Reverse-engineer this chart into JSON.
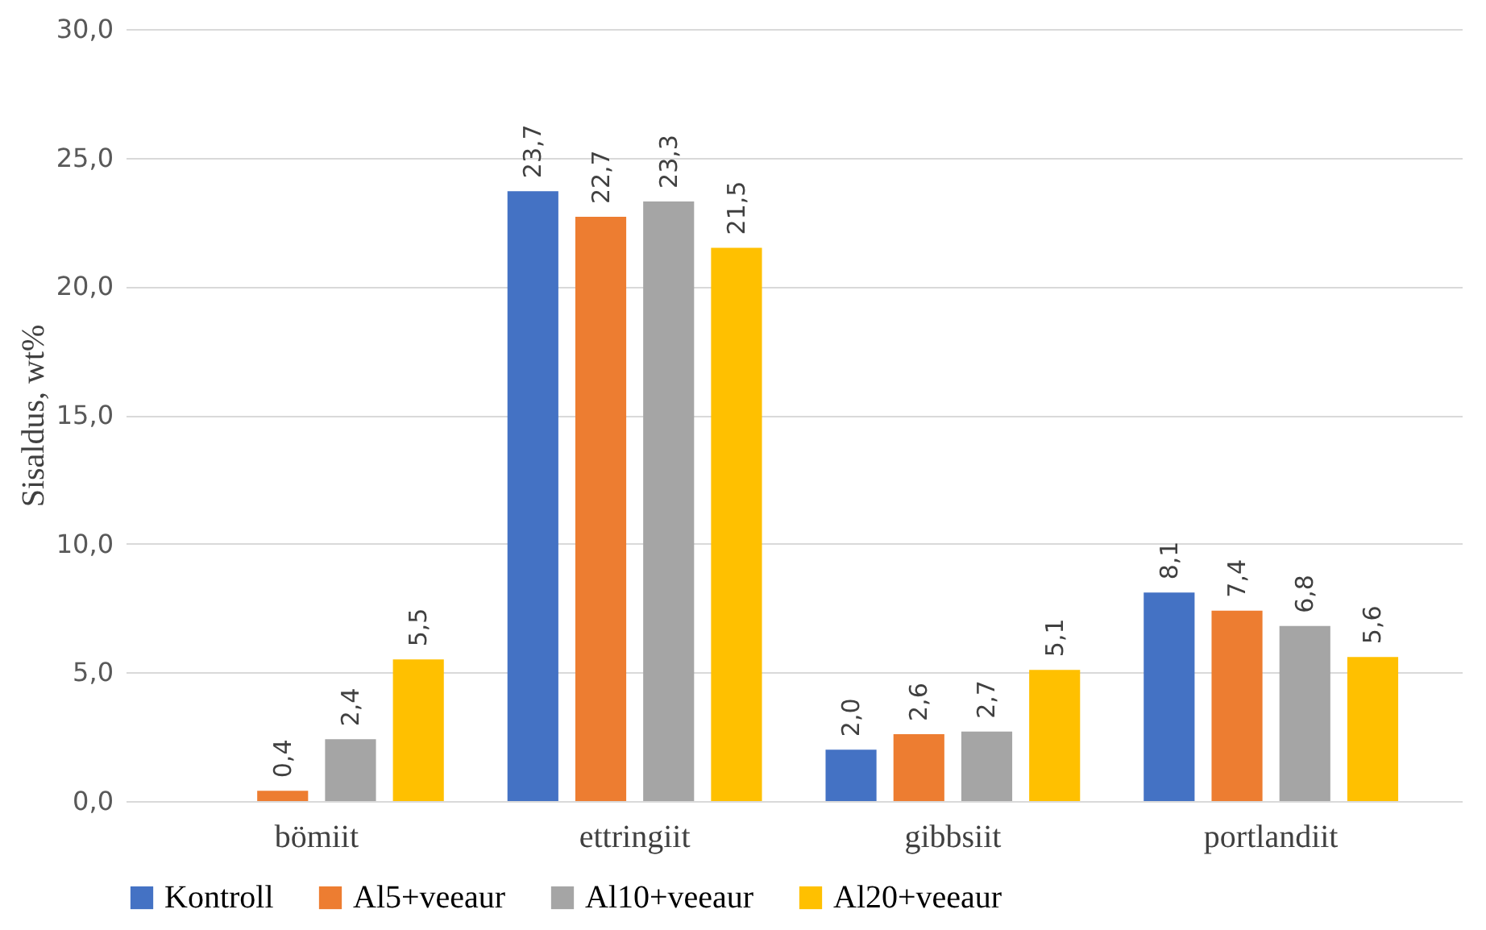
{
  "chart_data": {
    "type": "bar",
    "ylabel": "Sisaldus, wt%",
    "categories": [
      "bömiit",
      "ettringiit",
      "gibbsiit",
      "portlandiit"
    ],
    "series": [
      {
        "name": "Kontroll",
        "color": "#4472c4",
        "values": [
          null,
          23.7,
          2.0,
          8.1
        ],
        "value_labels": [
          null,
          "23,7",
          "2,0",
          "8,1"
        ]
      },
      {
        "name": "Al5+veeaur",
        "color": "#ed7d31",
        "values": [
          0.4,
          22.7,
          2.6,
          7.4
        ],
        "value_labels": [
          "0,4",
          "22,7",
          "2,6",
          "7,4"
        ]
      },
      {
        "name": "Al10+veeaur",
        "color": "#a5a5a5",
        "values": [
          2.4,
          23.3,
          2.7,
          6.8
        ],
        "value_labels": [
          "2,4",
          "23,3",
          "2,7",
          "6,8"
        ]
      },
      {
        "name": "Al20+veeaur",
        "color": "#ffc000",
        "values": [
          5.5,
          21.5,
          5.1,
          5.6
        ],
        "value_labels": [
          "5,5",
          "21,5",
          "5,1",
          "5,6"
        ]
      }
    ],
    "ylim": [
      0,
      30
    ],
    "yticks": [
      {
        "value": 0,
        "label": "0,0"
      },
      {
        "value": 5,
        "label": "5,0"
      },
      {
        "value": 10,
        "label": "10,0"
      },
      {
        "value": 15,
        "label": "15,0"
      },
      {
        "value": 20,
        "label": "20,0"
      },
      {
        "value": 25,
        "label": "25,0"
      },
      {
        "value": 30,
        "label": "30,0"
      }
    ],
    "grid": "y",
    "legend": "bottom"
  }
}
